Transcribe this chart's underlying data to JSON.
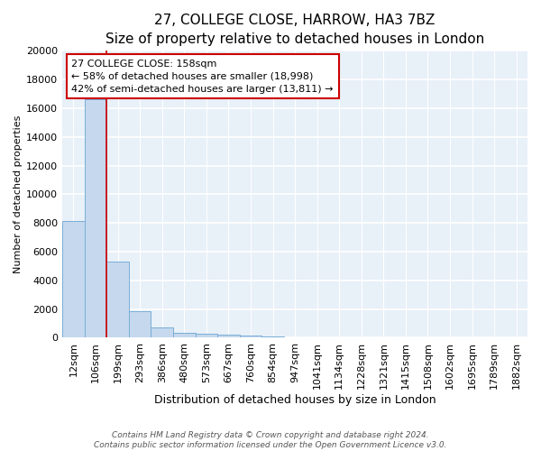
{
  "title": "27, COLLEGE CLOSE, HARROW, HA3 7BZ",
  "subtitle": "Size of property relative to detached houses in London",
  "xlabel": "Distribution of detached houses by size in London",
  "ylabel": "Number of detached properties",
  "bar_color": "#c5d8ee",
  "bar_edge_color": "#7aaed6",
  "background_color": "#e8f0f8",
  "grid_color": "#ffffff",
  "fig_bg_color": "#ffffff",
  "categories": [
    "12sqm",
    "106sqm",
    "199sqm",
    "293sqm",
    "386sqm",
    "480sqm",
    "573sqm",
    "667sqm",
    "760sqm",
    "854sqm",
    "947sqm",
    "1041sqm",
    "1134sqm",
    "1228sqm",
    "1321sqm",
    "1415sqm",
    "1508sqm",
    "1602sqm",
    "1695sqm",
    "1789sqm",
    "1882sqm"
  ],
  "values": [
    8150,
    16600,
    5300,
    1850,
    750,
    320,
    250,
    220,
    180,
    100,
    0,
    0,
    0,
    0,
    0,
    0,
    0,
    0,
    0,
    0,
    0
  ],
  "ylim": [
    0,
    20000
  ],
  "yticks": [
    0,
    2000,
    4000,
    6000,
    8000,
    10000,
    12000,
    14000,
    16000,
    18000,
    20000
  ],
  "red_line_x": 1.5,
  "annotation_text": "27 COLLEGE CLOSE: 158sqm\n← 58% of detached houses are smaller (18,998)\n42% of semi-detached houses are larger (13,811) →",
  "annotation_box_facecolor": "#ffffff",
  "annotation_box_edgecolor": "#cc0000",
  "footer_line1": "Contains HM Land Registry data © Crown copyright and database right 2024.",
  "footer_line2": "Contains public sector information licensed under the Open Government Licence v3.0.",
  "title_fontsize": 11,
  "subtitle_fontsize": 9,
  "ylabel_fontsize": 8,
  "xlabel_fontsize": 9,
  "tick_fontsize": 8,
  "annot_fontsize": 8
}
